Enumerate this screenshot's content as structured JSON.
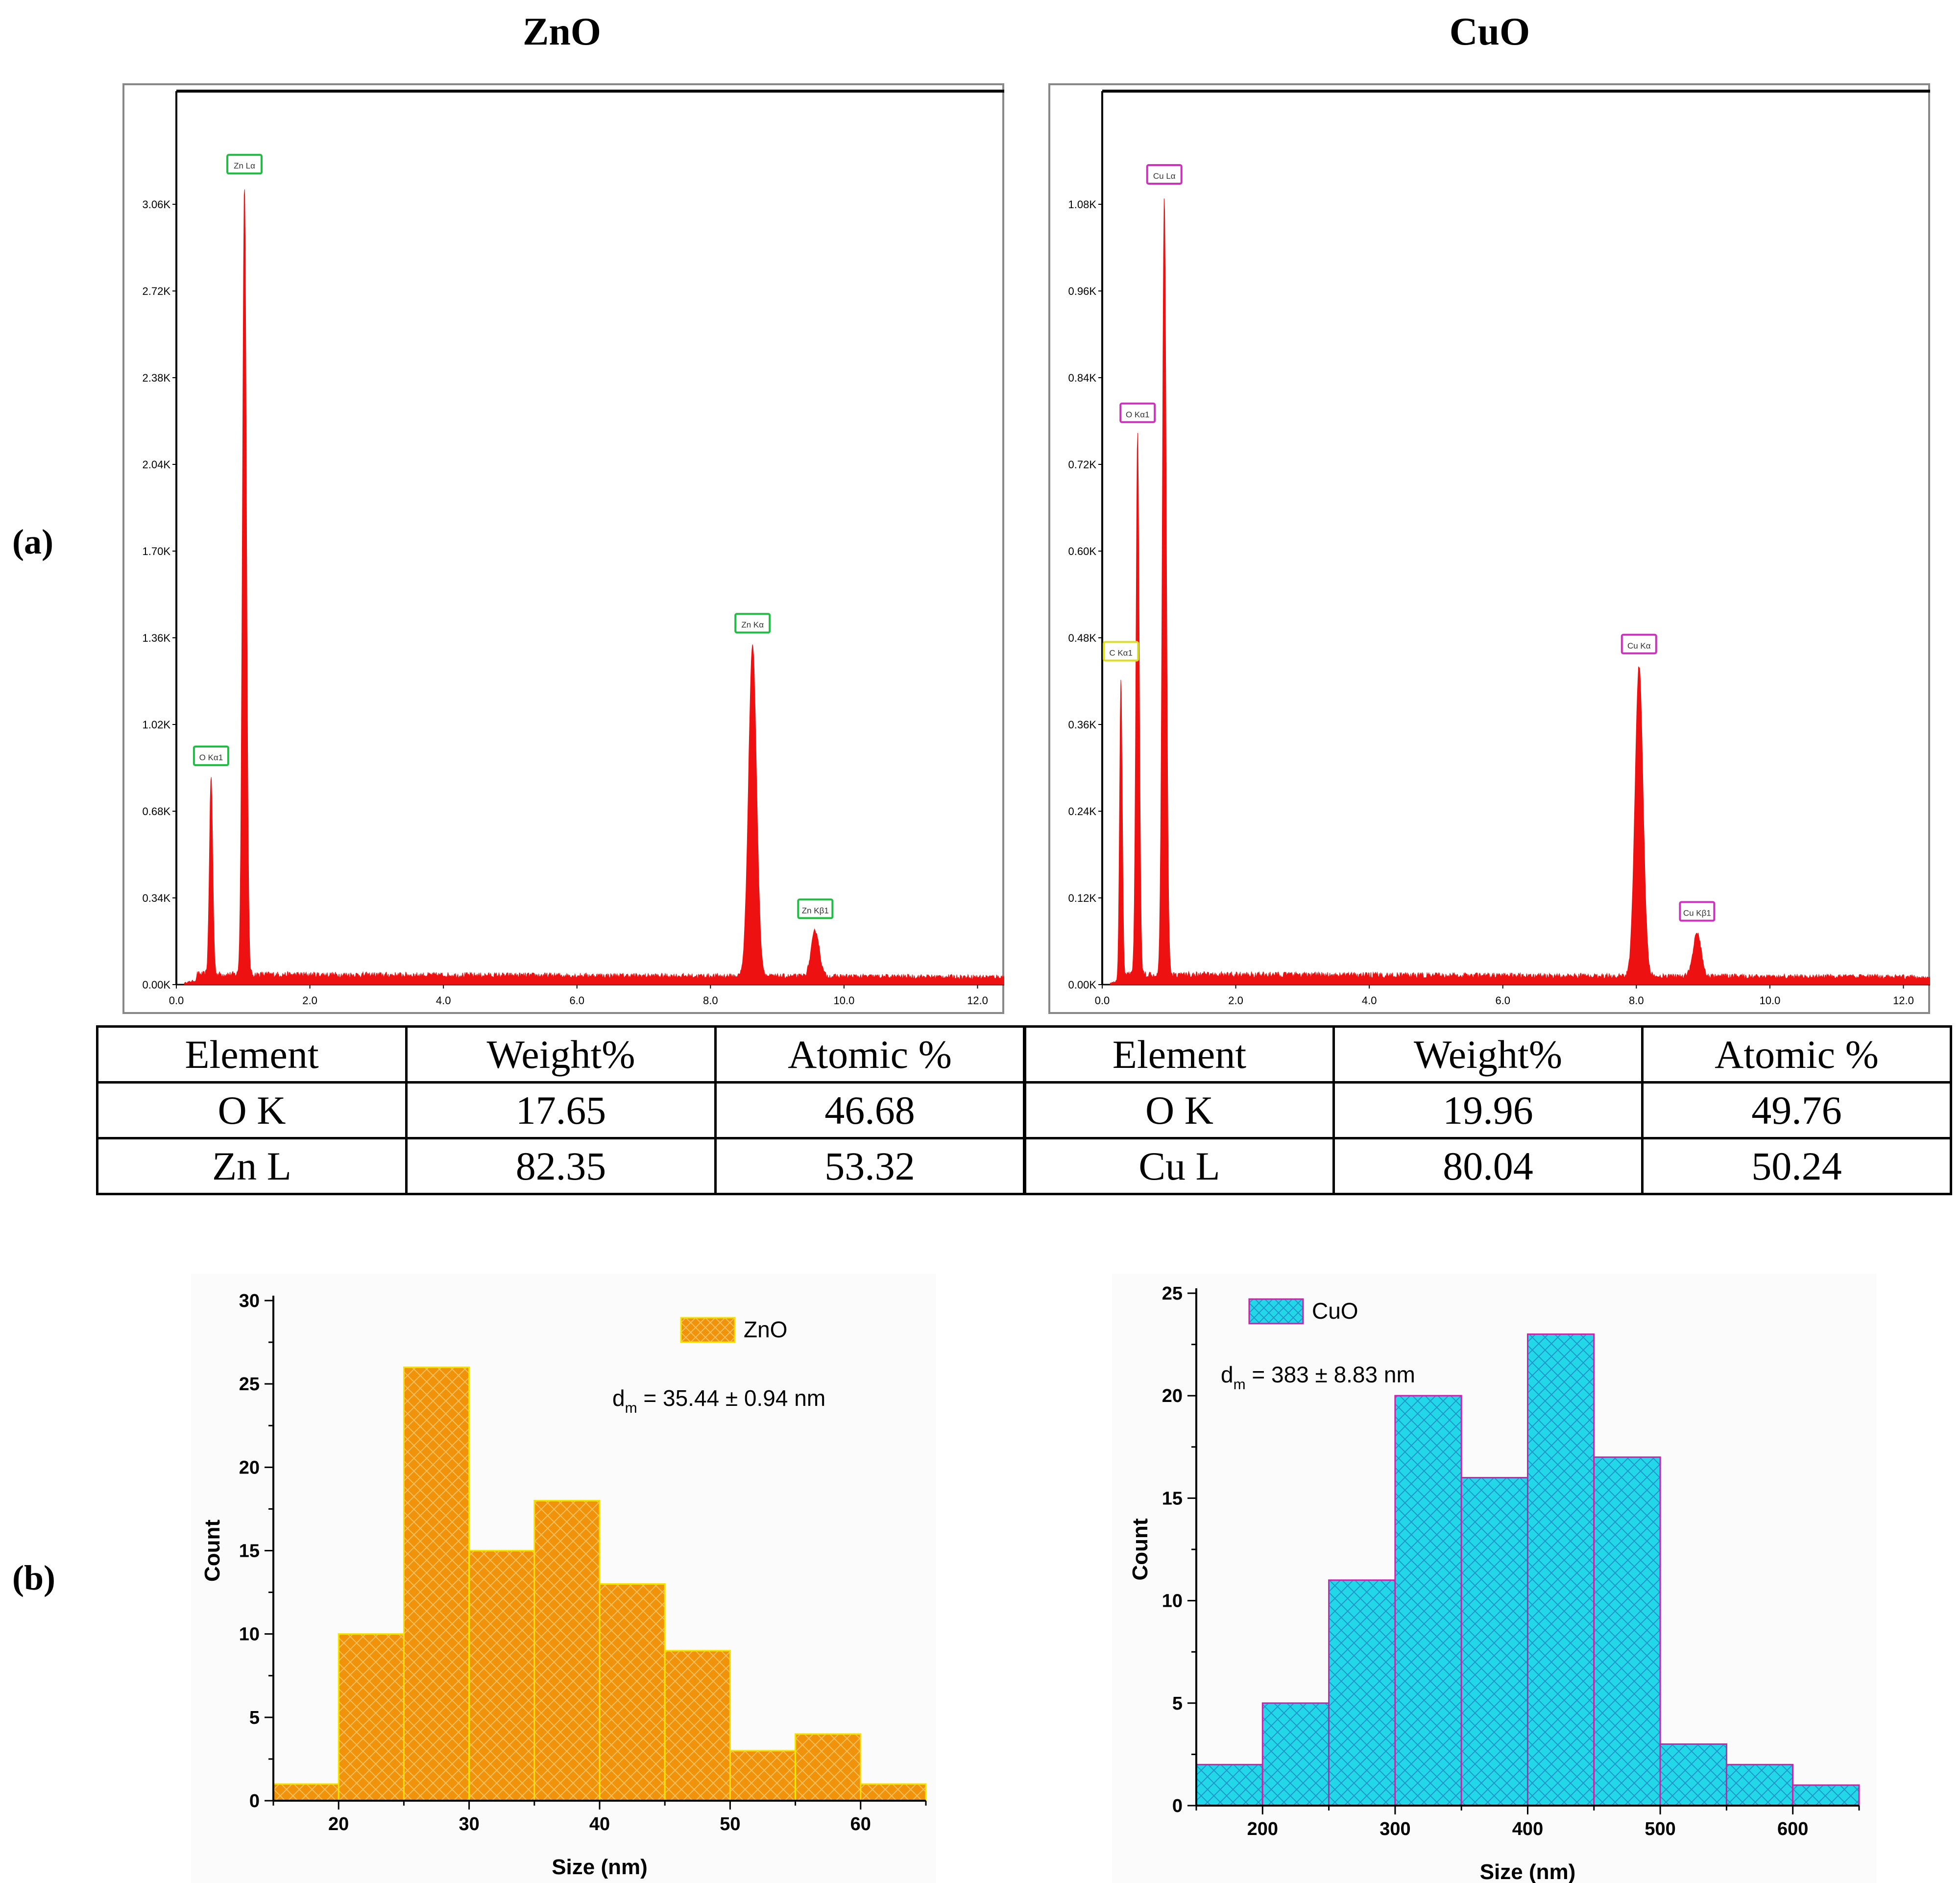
{
  "panel_labels": {
    "a": "(a)",
    "b": "(b)"
  },
  "titles": {
    "left": "ZnO",
    "right": "CuO"
  },
  "tables": [
    {
      "headers": [
        "Element",
        "Weight%",
        "Atomic %"
      ],
      "rows": [
        [
          "O K",
          "17.65",
          "46.68"
        ],
        [
          "Zn L",
          "82.35",
          "53.32"
        ]
      ]
    },
    {
      "headers": [
        "Element",
        "Weight%",
        "Atomic %"
      ],
      "rows": [
        [
          "O K",
          "19.96",
          "49.76"
        ],
        [
          "Cu L",
          "80.04",
          "50.24"
        ]
      ]
    }
  ],
  "chart_data": [
    {
      "type": "line",
      "title": "ZnO",
      "x_ticks": [
        "0.0",
        "2.0",
        "4.0",
        "6.0",
        "8.0",
        "10.0",
        "12.0"
      ],
      "y_ticks": [
        "0.00K",
        "0.34K",
        "0.68K",
        "1.02K",
        "1.36K",
        "1.70K",
        "2.04K",
        "2.38K",
        "2.72K",
        "3.06K"
      ],
      "xlim": [
        0,
        12.4
      ],
      "ylim": [
        0,
        3.4
      ],
      "peaks": [
        {
          "label": "O Kα1",
          "x": 0.52,
          "y": 0.78,
          "w": 0.025
        },
        {
          "label": "Zn Lα",
          "x": 1.02,
          "y": 3.1,
          "w": 0.03
        },
        {
          "label": "Zn Kα",
          "x": 8.63,
          "y": 1.3,
          "w": 0.06
        },
        {
          "label": "Zn Kβ1",
          "x": 9.57,
          "y": 0.18,
          "w": 0.06
        }
      ],
      "peak_color": "#ee1111",
      "label_color": "#22bb44"
    },
    {
      "type": "line",
      "title": "CuO",
      "x_ticks": [
        "0.0",
        "2.0",
        "4.0",
        "6.0",
        "8.0",
        "10.0",
        "12.0"
      ],
      "y_ticks": [
        "0.00K",
        "0.12K",
        "0.24K",
        "0.36K",
        "0.48K",
        "0.60K",
        "0.72K",
        "0.84K",
        "0.96K",
        "1.08K"
      ],
      "xlim": [
        0,
        12.4
      ],
      "ylim": [
        0,
        1.2
      ],
      "peaks": [
        {
          "label": "C Kα1",
          "x": 0.28,
          "y": 0.42,
          "w": 0.02
        },
        {
          "label": "O Kα1",
          "x": 0.53,
          "y": 0.75,
          "w": 0.025
        },
        {
          "label": "Cu Lα",
          "x": 0.93,
          "y": 1.08,
          "w": 0.03
        },
        {
          "label": "Cu Kα",
          "x": 8.04,
          "y": 0.43,
          "w": 0.06
        },
        {
          "label": "Cu Kβ1",
          "x": 8.91,
          "y": 0.06,
          "w": 0.06
        }
      ],
      "peak_color": "#ee1111",
      "label_colors": [
        "#dddd22",
        "#cc33bb",
        "#cc33bb",
        "#cc33bb",
        "#cc33bb"
      ]
    },
    {
      "type": "bar",
      "title": "",
      "legend": "ZnO",
      "annotation": {
        "prefix": "d",
        "sub": "m",
        "text": " = 35.44 ± 0.94 nm"
      },
      "xlabel": "Size (nm)",
      "ylabel": "Count",
      "bin_edges": [
        15,
        20,
        25,
        30,
        35,
        40,
        45,
        50,
        55,
        60,
        65
      ],
      "values": [
        1,
        10,
        26,
        15,
        18,
        13,
        9,
        3,
        4,
        1
      ],
      "xlim": [
        15,
        65
      ],
      "ylim": [
        0,
        30
      ],
      "x_ticks": [
        20,
        30,
        40,
        50,
        60
      ],
      "y_ticks": [
        0,
        5,
        10,
        15,
        20,
        25,
        30
      ],
      "fill": "#f0930a",
      "stroke": "#f2e300"
    },
    {
      "type": "bar",
      "title": "",
      "legend": "CuO",
      "annotation": {
        "prefix": "d",
        "sub": "m",
        "text": " = 383 ± 8.83 nm"
      },
      "xlabel": "Size (nm)",
      "ylabel": "Count",
      "bin_edges": [
        150,
        200,
        250,
        300,
        350,
        400,
        450,
        500,
        550,
        600,
        650
      ],
      "values": [
        2,
        5,
        11,
        20,
        16,
        23,
        17,
        3,
        2,
        1
      ],
      "xlim": [
        150,
        650
      ],
      "ylim": [
        0,
        25
      ],
      "x_ticks": [
        200,
        300,
        400,
        500,
        600
      ],
      "y_ticks": [
        0,
        5,
        10,
        15,
        20,
        25
      ],
      "fill": "#22d8e8",
      "stroke": "#cc22aa"
    }
  ]
}
